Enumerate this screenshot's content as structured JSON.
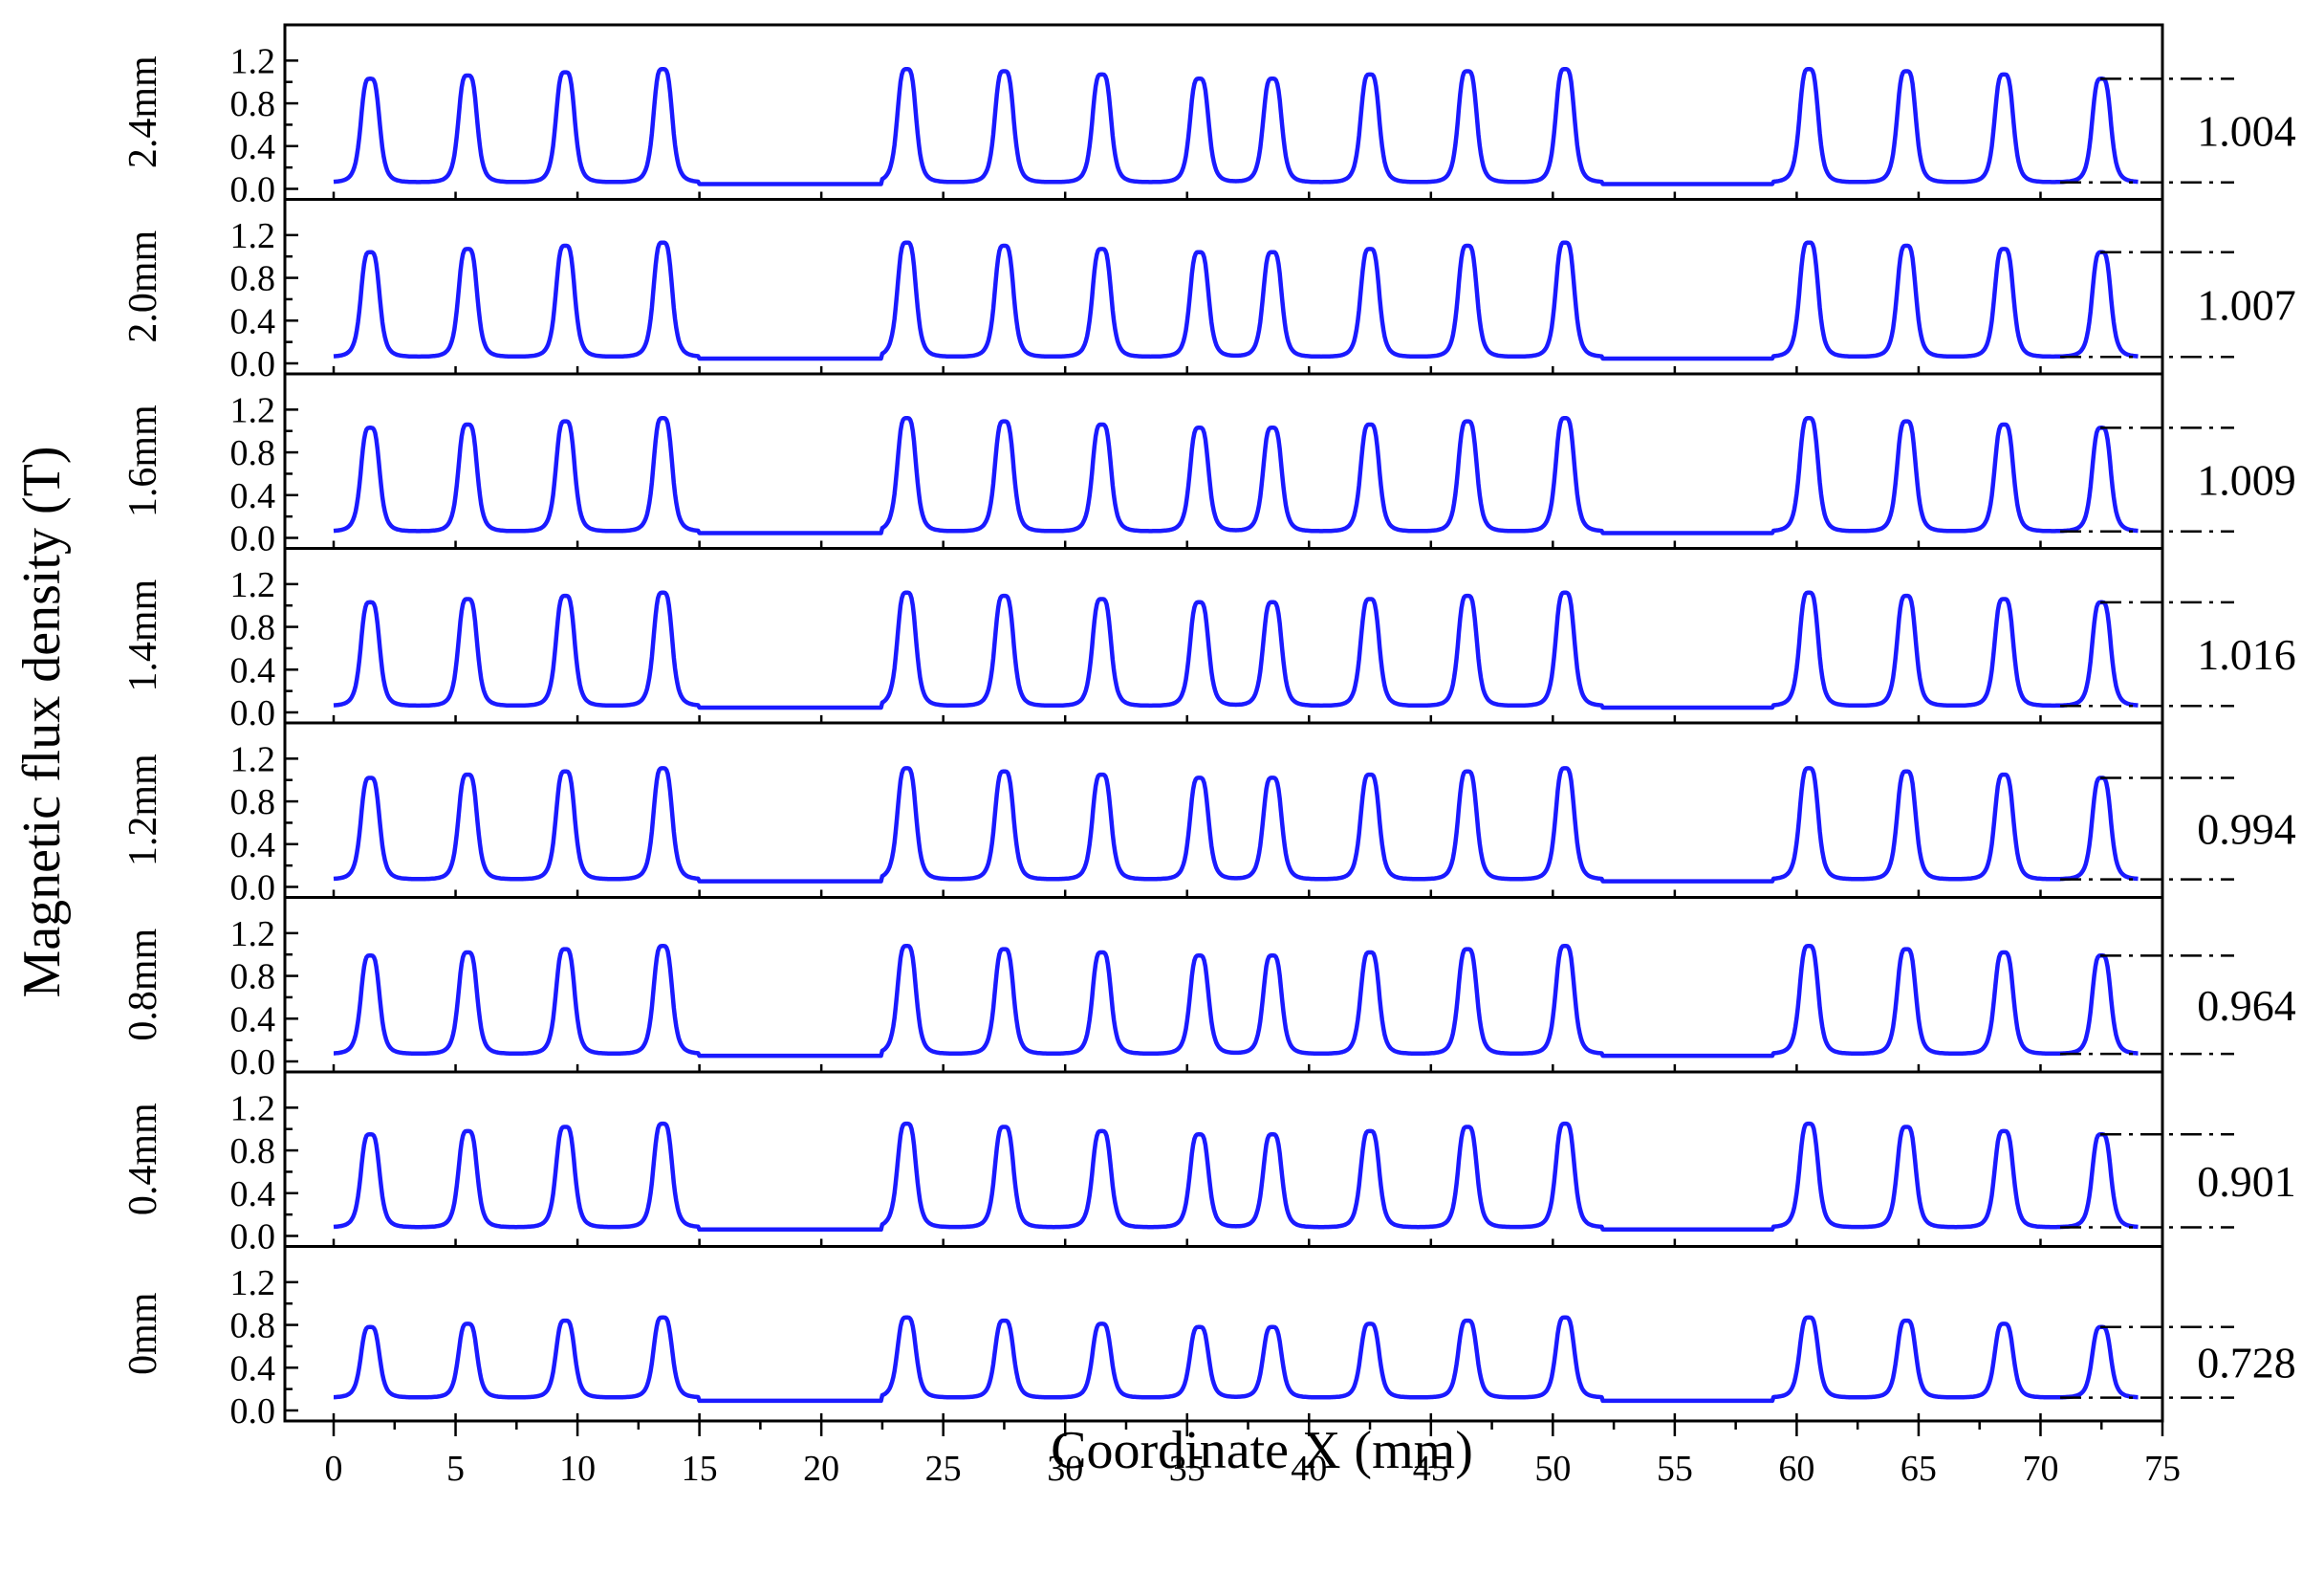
{
  "chart_data": {
    "type": "line",
    "xlabel": "Coordinate X (mm)",
    "ylabel": "Magnetic flux density  (T)",
    "xlim": [
      -2,
      75
    ],
    "x_ticks": [
      0,
      5,
      10,
      15,
      20,
      25,
      30,
      35,
      40,
      45,
      50,
      55,
      60,
      65,
      70,
      75
    ],
    "ylim": [
      0,
      1.4
    ],
    "y_ticks": [
      "0.0",
      "0.4",
      "0.8",
      "1.2"
    ],
    "peak_positions": [
      1.5,
      5.5,
      9.5,
      13.5,
      23.5,
      27.5,
      31.5,
      35.5,
      38.5,
      42.5,
      46.5,
      50.5,
      60.5,
      64.5,
      68.5,
      72.5
    ],
    "gaps": [
      [
        15,
        22.5
      ],
      [
        52,
        59
      ]
    ],
    "series": [
      {
        "name": "2.4mm",
        "diff_label": "1.004",
        "baseline": 0.06,
        "peaks": [
          1.03,
          1.06,
          1.09,
          1.12,
          1.12,
          1.1,
          1.07,
          1.03,
          1.03,
          1.07,
          1.1,
          1.12,
          1.12,
          1.1,
          1.07,
          1.03
        ]
      },
      {
        "name": "2.0mm",
        "diff_label": "1.007",
        "baseline": 0.06,
        "peaks": [
          1.04,
          1.07,
          1.1,
          1.13,
          1.13,
          1.1,
          1.07,
          1.04,
          1.04,
          1.07,
          1.1,
          1.13,
          1.13,
          1.1,
          1.07,
          1.04
        ]
      },
      {
        "name": "1.6mm",
        "diff_label": "1.009",
        "baseline": 0.06,
        "peaks": [
          1.03,
          1.06,
          1.09,
          1.12,
          1.12,
          1.09,
          1.06,
          1.03,
          1.03,
          1.06,
          1.09,
          1.12,
          1.12,
          1.09,
          1.06,
          1.03
        ]
      },
      {
        "name": "1.4mm",
        "diff_label": "1.016",
        "baseline": 0.06,
        "peaks": [
          1.03,
          1.06,
          1.09,
          1.12,
          1.12,
          1.09,
          1.06,
          1.03,
          1.03,
          1.06,
          1.09,
          1.12,
          1.12,
          1.09,
          1.06,
          1.03
        ]
      },
      {
        "name": "1.2mm",
        "diff_label": "0.994",
        "baseline": 0.07,
        "peaks": [
          1.02,
          1.05,
          1.08,
          1.11,
          1.11,
          1.08,
          1.05,
          1.02,
          1.02,
          1.05,
          1.08,
          1.11,
          1.11,
          1.08,
          1.05,
          1.02
        ]
      },
      {
        "name": "0.8mm",
        "diff_label": "0.964",
        "baseline": 0.07,
        "peaks": [
          0.99,
          1.02,
          1.05,
          1.08,
          1.08,
          1.05,
          1.02,
          0.99,
          0.99,
          1.02,
          1.05,
          1.08,
          1.08,
          1.05,
          1.02,
          0.99
        ]
      },
      {
        "name": "0.4mm",
        "diff_label": "0.901",
        "baseline": 0.08,
        "peaks": [
          0.95,
          0.98,
          1.02,
          1.05,
          1.05,
          1.02,
          0.98,
          0.95,
          0.95,
          0.98,
          1.02,
          1.05,
          1.05,
          1.02,
          0.98,
          0.95
        ]
      },
      {
        "name": "0mm",
        "diff_label": "0.728",
        "baseline": 0.12,
        "peaks": [
          0.78,
          0.81,
          0.84,
          0.87,
          0.87,
          0.84,
          0.81,
          0.78,
          0.78,
          0.81,
          0.84,
          0.87,
          0.87,
          0.84,
          0.81,
          0.78
        ]
      }
    ],
    "colors": {
      "series": "#1a1aff"
    },
    "grid": false,
    "legend": "none"
  }
}
